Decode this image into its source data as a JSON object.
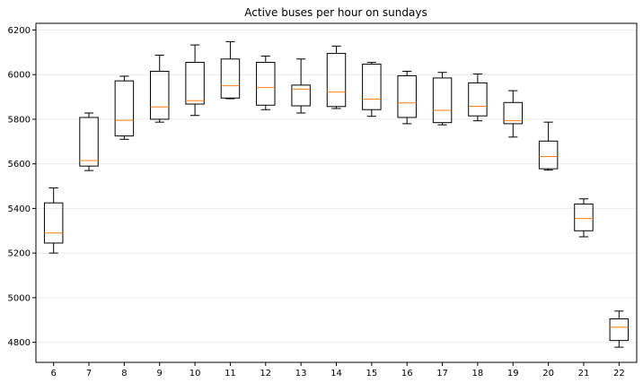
{
  "chart_data": {
    "type": "boxplot",
    "title": "Active buses per hour on sundays",
    "xlabel": "",
    "ylabel": "",
    "categories": [
      "6",
      "7",
      "8",
      "9",
      "10",
      "11",
      "12",
      "13",
      "14",
      "15",
      "16",
      "17",
      "18",
      "19",
      "20",
      "21",
      "22"
    ],
    "boxes": [
      {
        "category": "6",
        "whisker_low": 5200,
        "q1": 5245,
        "median": 5290,
        "q3": 5425,
        "whisker_high": 5492
      },
      {
        "category": "7",
        "whisker_low": 5570,
        "q1": 5590,
        "median": 5615,
        "q3": 5808,
        "whisker_high": 5828
      },
      {
        "category": "8",
        "whisker_low": 5710,
        "q1": 5725,
        "median": 5795,
        "q3": 5972,
        "whisker_high": 5993
      },
      {
        "category": "9",
        "whisker_low": 5787,
        "q1": 5800,
        "median": 5855,
        "q3": 6015,
        "whisker_high": 6087
      },
      {
        "category": "10",
        "whisker_low": 5817,
        "q1": 5868,
        "median": 5883,
        "q3": 6055,
        "whisker_high": 6133
      },
      {
        "category": "11",
        "whisker_low": 5892,
        "q1": 5895,
        "median": 5950,
        "q3": 6070,
        "whisker_high": 6148
      },
      {
        "category": "12",
        "whisker_low": 5843,
        "q1": 5863,
        "median": 5942,
        "q3": 6055,
        "whisker_high": 6083
      },
      {
        "category": "13",
        "whisker_low": 5828,
        "q1": 5860,
        "median": 5935,
        "q3": 5953,
        "whisker_high": 6070
      },
      {
        "category": "14",
        "whisker_low": 5848,
        "q1": 5857,
        "median": 5922,
        "q3": 6095,
        "whisker_high": 6128
      },
      {
        "category": "15",
        "whisker_low": 5813,
        "q1": 5843,
        "median": 5890,
        "q3": 6047,
        "whisker_high": 6055
      },
      {
        "category": "16",
        "whisker_low": 5780,
        "q1": 5808,
        "median": 5873,
        "q3": 5995,
        "whisker_high": 6015
      },
      {
        "category": "17",
        "whisker_low": 5775,
        "q1": 5785,
        "median": 5840,
        "q3": 5985,
        "whisker_high": 6010
      },
      {
        "category": "18",
        "whisker_low": 5793,
        "q1": 5815,
        "median": 5858,
        "q3": 5963,
        "whisker_high": 6003
      },
      {
        "category": "19",
        "whisker_low": 5720,
        "q1": 5780,
        "median": 5793,
        "q3": 5875,
        "whisker_high": 5928
      },
      {
        "category": "20",
        "whisker_low": 5572,
        "q1": 5578,
        "median": 5633,
        "q3": 5702,
        "whisker_high": 5787
      },
      {
        "category": "21",
        "whisker_low": 5273,
        "q1": 5300,
        "median": 5355,
        "q3": 5420,
        "whisker_high": 5443
      },
      {
        "category": "22",
        "whisker_low": 4778,
        "q1": 4808,
        "median": 4868,
        "q3": 4905,
        "whisker_high": 4940
      }
    ],
    "yticks": [
      4800,
      5000,
      5200,
      5400,
      5600,
      5800,
      6000,
      6200
    ],
    "ylim": [
      4710,
      6230
    ],
    "grid": "horizontal",
    "colors": {
      "box": "#000000",
      "median": "#ff7f0e",
      "grid": "#ebebeb"
    }
  }
}
